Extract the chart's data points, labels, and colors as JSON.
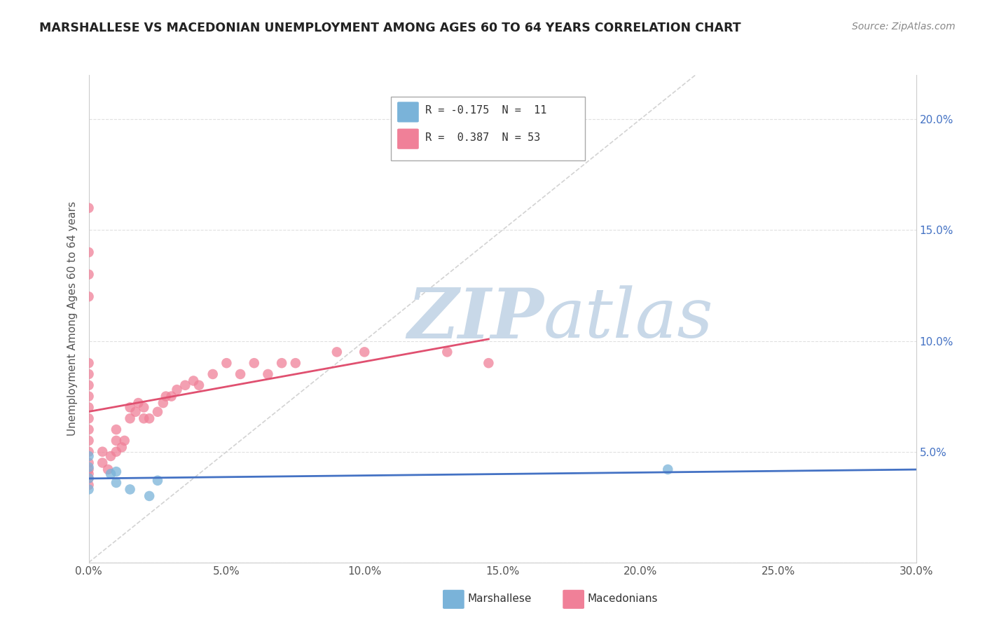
{
  "title": "MARSHALLESE VS MACEDONIAN UNEMPLOYMENT AMONG AGES 60 TO 64 YEARS CORRELATION CHART",
  "source": "Source: ZipAtlas.com",
  "ylabel": "Unemployment Among Ages 60 to 64 years",
  "xlim": [
    0.0,
    0.3
  ],
  "ylim": [
    0.0,
    0.22
  ],
  "xticks": [
    0.0,
    0.05,
    0.1,
    0.15,
    0.2,
    0.25,
    0.3
  ],
  "xticklabels": [
    "0.0%",
    "5.0%",
    "10.0%",
    "15.0%",
    "20.0%",
    "25.0%",
    "30.0%"
  ],
  "yticks": [
    0.0,
    0.05,
    0.1,
    0.15,
    0.2
  ],
  "yticklabels_right": [
    "",
    "5.0%",
    "10.0%",
    "15.0%",
    "20.0%"
  ],
  "legend_entry1": "R = -0.175  N =  11",
  "legend_entry2": "R =  0.387  N = 53",
  "legend_label1": "Marshallese",
  "legend_label2": "Macedonians",
  "marshallese_x": [
    0.0,
    0.0,
    0.0,
    0.0,
    0.008,
    0.01,
    0.01,
    0.015,
    0.025,
    0.21,
    0.022
  ],
  "marshallese_y": [
    0.048,
    0.043,
    0.038,
    0.033,
    0.04,
    0.041,
    0.036,
    0.033,
    0.037,
    0.042,
    0.03
  ],
  "macedonian_x": [
    0.0,
    0.0,
    0.0,
    0.0,
    0.0,
    0.0,
    0.0,
    0.0,
    0.0,
    0.0,
    0.0,
    0.0,
    0.0,
    0.0,
    0.0,
    0.0,
    0.0,
    0.0,
    0.005,
    0.005,
    0.007,
    0.008,
    0.01,
    0.01,
    0.01,
    0.012,
    0.013,
    0.015,
    0.015,
    0.017,
    0.018,
    0.02,
    0.02,
    0.022,
    0.025,
    0.027,
    0.028,
    0.03,
    0.032,
    0.035,
    0.038,
    0.04,
    0.045,
    0.05,
    0.055,
    0.06,
    0.065,
    0.07,
    0.075,
    0.09,
    0.1,
    0.13,
    0.145
  ],
  "macedonian_y": [
    0.05,
    0.055,
    0.06,
    0.065,
    0.07,
    0.075,
    0.08,
    0.085,
    0.09,
    0.16,
    0.14,
    0.13,
    0.12,
    0.045,
    0.04,
    0.035,
    0.042,
    0.038,
    0.05,
    0.045,
    0.042,
    0.048,
    0.05,
    0.055,
    0.06,
    0.052,
    0.055,
    0.065,
    0.07,
    0.068,
    0.072,
    0.065,
    0.07,
    0.065,
    0.068,
    0.072,
    0.075,
    0.075,
    0.078,
    0.08,
    0.082,
    0.08,
    0.085,
    0.09,
    0.085,
    0.09,
    0.085,
    0.09,
    0.09,
    0.095,
    0.095,
    0.095,
    0.09
  ],
  "marshallese_color": "#7ab3d9",
  "macedonian_color": "#f08098",
  "marshallese_line_color": "#4472c4",
  "macedonian_line_color": "#e05070",
  "diagonal_color": "#c8c8c8",
  "background_color": "#ffffff",
  "watermark_zip": "ZIP",
  "watermark_atlas": "atlas",
  "watermark_color": "#c8d8e8",
  "grid_color": "#e0e0e0",
  "marshallese_R": -0.175,
  "marshallese_N": 11,
  "macedonian_R": 0.387,
  "macedonian_N": 53
}
